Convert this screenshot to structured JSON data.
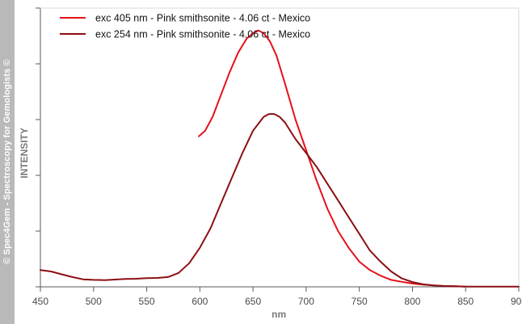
{
  "sidebar": {
    "text": "© Spec4Gem - Spectroscopy for Gemologists ©"
  },
  "chart_data": {
    "type": "line",
    "xlabel": "nm",
    "ylabel": "INTENSITY",
    "xlim": [
      450,
      900
    ],
    "ylim": [
      0,
      1
    ],
    "x_ticks": [
      "450",
      "500",
      "550",
      "600",
      "650",
      "700",
      "750",
      "800",
      "850",
      "900"
    ],
    "grid": false,
    "legend_position": "top-left",
    "series": [
      {
        "name": "exc 405 nm - Pink smithsonite - 4.06 ct - Mexico",
        "color": "#e4111b",
        "x": [
          599,
          605,
          612,
          620,
          628,
          636,
          644,
          650,
          655,
          660,
          666,
          672,
          680,
          690,
          700,
          710,
          720,
          730,
          740,
          750,
          760,
          770,
          780,
          790,
          800,
          810,
          820,
          830,
          840,
          850
        ],
        "y": [
          0.54,
          0.56,
          0.61,
          0.69,
          0.77,
          0.84,
          0.89,
          0.91,
          0.92,
          0.91,
          0.88,
          0.83,
          0.73,
          0.6,
          0.49,
          0.38,
          0.28,
          0.2,
          0.14,
          0.09,
          0.06,
          0.04,
          0.025,
          0.018,
          0.012,
          0.008,
          0.005,
          0.003,
          0.002,
          0.001
        ]
      },
      {
        "name": "exc 254 nm - Pink smithsonite - 4.06 ct - Mexico",
        "color": "#8b0f14",
        "x": [
          450,
          460,
          470,
          480,
          490,
          500,
          510,
          520,
          530,
          540,
          550,
          560,
          570,
          580,
          590,
          600,
          610,
          620,
          630,
          640,
          650,
          660,
          665,
          670,
          675,
          680,
          690,
          700,
          710,
          720,
          730,
          740,
          750,
          760,
          770,
          780,
          790,
          800,
          810,
          820,
          830,
          840,
          850,
          860,
          870,
          880,
          890,
          900
        ],
        "y": [
          0.06,
          0.055,
          0.045,
          0.035,
          0.027,
          0.025,
          0.024,
          0.026,
          0.028,
          0.029,
          0.031,
          0.032,
          0.035,
          0.05,
          0.085,
          0.14,
          0.21,
          0.3,
          0.39,
          0.48,
          0.56,
          0.61,
          0.62,
          0.62,
          0.61,
          0.59,
          0.53,
          0.48,
          0.43,
          0.37,
          0.31,
          0.25,
          0.19,
          0.13,
          0.09,
          0.055,
          0.03,
          0.017,
          0.009,
          0.005,
          0.003,
          0.002,
          0.001,
          0.001,
          0.001,
          0.001,
          0.001,
          0.001
        ]
      }
    ]
  }
}
